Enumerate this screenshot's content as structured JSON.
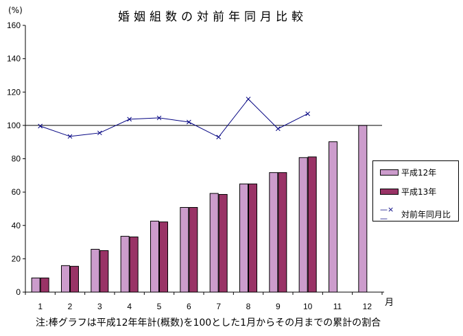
{
  "chart_data": {
    "type": "bar+line",
    "title": "婚姻組数の対前年同月比較",
    "ylabel": "(%)",
    "xlabel": "月",
    "ylim": [
      0,
      160
    ],
    "yticks": [
      0,
      20,
      40,
      60,
      80,
      100,
      120,
      140,
      160
    ],
    "categories": [
      "1",
      "2",
      "3",
      "4",
      "5",
      "6",
      "7",
      "8",
      "9",
      "10",
      "11",
      "12"
    ],
    "reference_line": 100,
    "series": [
      {
        "name": "平成12年",
        "type": "bar",
        "color": "#cc9ccc",
        "values": [
          8.5,
          15.9,
          25.7,
          33.5,
          42.6,
          50.8,
          59.2,
          64.9,
          71.7,
          80.7,
          90.2,
          100
        ]
      },
      {
        "name": "平成13年",
        "type": "bar",
        "color": "#993366",
        "values": [
          8.5,
          15.5,
          24.9,
          33.1,
          42.1,
          50.8,
          58.6,
          64.9,
          71.7,
          81.1,
          null,
          null
        ]
      },
      {
        "name": "対前年同月比",
        "type": "line",
        "color": "#000080",
        "marker": "x",
        "values": [
          99.6,
          93.4,
          95.5,
          103.7,
          104.5,
          102.0,
          93.0,
          115.8,
          98.0,
          107.0,
          null,
          null
        ]
      }
    ],
    "legend_position": "right",
    "note": "注:棒グラフは平成12年年計(概数)を100とした1月からその月までの累計の割合"
  }
}
